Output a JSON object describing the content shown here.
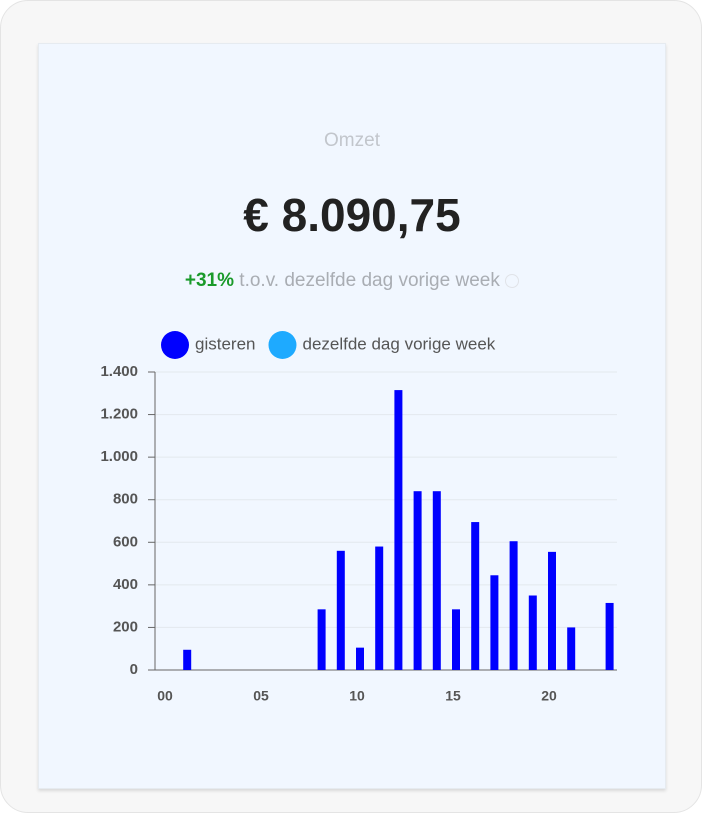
{
  "header": {
    "title": "Omzet",
    "amount": "€ 8.090,75",
    "change": "+31%",
    "comparison": "t.o.v. dezelfde dag vorige week"
  },
  "chart_data": {
    "type": "bar",
    "categories": [
      "00",
      null,
      null,
      null,
      null,
      "05",
      null,
      null,
      null,
      null,
      "10",
      null,
      null,
      null,
      null,
      "15",
      null,
      null,
      null,
      null,
      "20",
      null,
      null,
      null
    ],
    "series": [
      {
        "name": "gisteren",
        "color": "#0000ff",
        "values": [
          0,
          95,
          0,
          0,
          0,
          0,
          0,
          0,
          285,
          560,
          105,
          580,
          1315,
          840,
          840,
          285,
          695,
          445,
          605,
          350,
          555,
          200,
          0,
          315
        ]
      },
      {
        "name": "dezelfde dag vorige week",
        "color": "#1eaaff",
        "values": [
          null,
          null,
          null,
          null,
          null,
          null,
          null,
          null,
          null,
          null,
          null,
          null,
          null,
          null,
          null,
          null,
          null,
          null,
          null,
          null,
          null,
          null,
          null,
          null
        ]
      }
    ],
    "ylim": [
      0,
      1400
    ],
    "yticks": [
      0,
      200,
      400,
      600,
      800,
      {
        "value": 1000,
        "label": "1.000"
      },
      {
        "value": 1200,
        "label": "1.200"
      },
      {
        "value": 1400,
        "label": "1.400"
      }
    ],
    "grid": true
  }
}
